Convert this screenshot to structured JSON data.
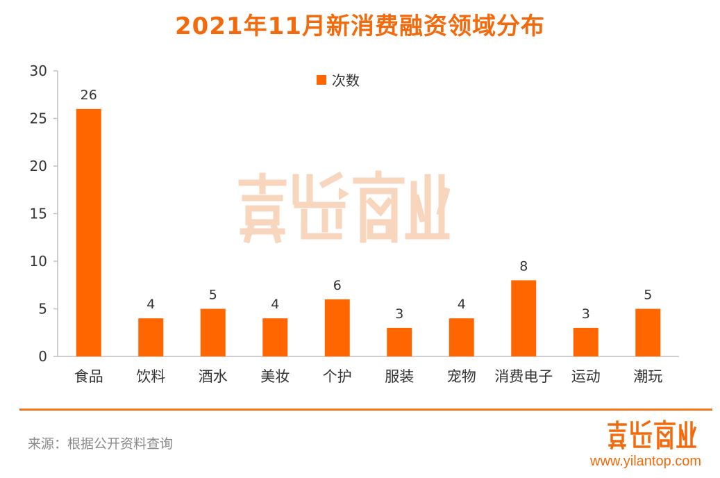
{
  "chart_data": {
    "type": "bar",
    "title": "2021年11月新消费融资领域分布",
    "categories": [
      "食品",
      "饮料",
      "酒水",
      "美妆",
      "个护",
      "服装",
      "宠物",
      "消费电子",
      "运动",
      "潮玩"
    ],
    "series": [
      {
        "name": "次数",
        "values": [
          26,
          4,
          5,
          4,
          6,
          3,
          4,
          8,
          3,
          5
        ]
      }
    ],
    "xlabel": "",
    "ylabel": "",
    "ylim": [
      0,
      30
    ],
    "yticks": [
      0,
      5,
      10,
      15,
      20,
      25,
      30
    ],
    "grid": false,
    "legend": "top-center",
    "bar_color": "#ff6600"
  },
  "footer": {
    "source": "来源：根据公开资料查询",
    "logo": "壹览商业",
    "url": "www.yilantop.com"
  },
  "colors": {
    "accent": "#f26a0c",
    "divider": "#f07520"
  }
}
